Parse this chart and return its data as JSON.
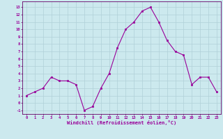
{
  "x": [
    0,
    1,
    2,
    3,
    4,
    5,
    6,
    7,
    8,
    9,
    10,
    11,
    12,
    13,
    14,
    15,
    16,
    17,
    18,
    19,
    20,
    21,
    22,
    23
  ],
  "y": [
    1.0,
    1.5,
    2.0,
    3.5,
    3.0,
    3.0,
    2.5,
    -1.0,
    -0.5,
    2.0,
    4.0,
    7.5,
    10.0,
    11.0,
    12.5,
    13.0,
    11.0,
    8.5,
    7.0,
    6.5,
    2.5,
    3.5,
    3.5,
    1.5
  ],
  "line_color": "#990099",
  "marker_color": "#990099",
  "bg_color": "#cce9ee",
  "grid_color": "#b0d0d8",
  "xlabel": "Windchill (Refroidissement éolien,°C)",
  "xlabel_color": "#990099",
  "xtick_labels": [
    "0",
    "1",
    "2",
    "3",
    "4",
    "5",
    "6",
    "7",
    "8",
    "9",
    "10",
    "11",
    "12",
    "13",
    "14",
    "15",
    "16",
    "17",
    "18",
    "19",
    "20",
    "21",
    "22",
    "23"
  ],
  "ytick_vals": [
    -1,
    0,
    1,
    2,
    3,
    4,
    5,
    6,
    7,
    8,
    9,
    10,
    11,
    12,
    13
  ],
  "ytick_labels": [
    "-1",
    "0",
    "1",
    "2",
    "3",
    "4",
    "5",
    "6",
    "7",
    "8",
    "9",
    "10",
    "11",
    "12",
    "13"
  ],
  "ylim": [
    -1.5,
    13.8
  ],
  "xlim": [
    -0.5,
    23.5
  ],
  "tick_color": "#990099",
  "axis_color": "#660066",
  "figsize": [
    3.2,
    2.0
  ],
  "dpi": 100
}
